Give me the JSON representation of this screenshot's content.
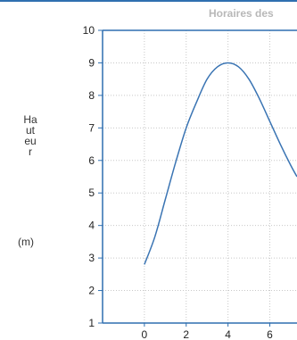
{
  "chart_data": {
    "type": "line",
    "title": "Horaires des",
    "ylabel_text": "Hauteur",
    "ylabel_unit": "(m)",
    "xlim": [
      -2,
      7.3
    ],
    "ylim": [
      1,
      10
    ],
    "xticks": [
      0,
      2,
      4,
      6
    ],
    "yticks": [
      1,
      2,
      3,
      4,
      5,
      6,
      7,
      8,
      9,
      10
    ],
    "grid": true,
    "series": [
      {
        "color": "#3a74b3",
        "x": [
          0,
          0.5,
          1,
          1.5,
          2,
          2.5,
          3,
          3.5,
          4,
          4.5,
          5,
          5.5,
          6,
          6.5,
          7,
          7.3
        ],
        "y": [
          2.8,
          3.65,
          4.8,
          5.95,
          7.0,
          7.8,
          8.5,
          8.88,
          9.0,
          8.88,
          8.5,
          7.9,
          7.2,
          6.5,
          5.85,
          5.5
        ]
      }
    ]
  }
}
